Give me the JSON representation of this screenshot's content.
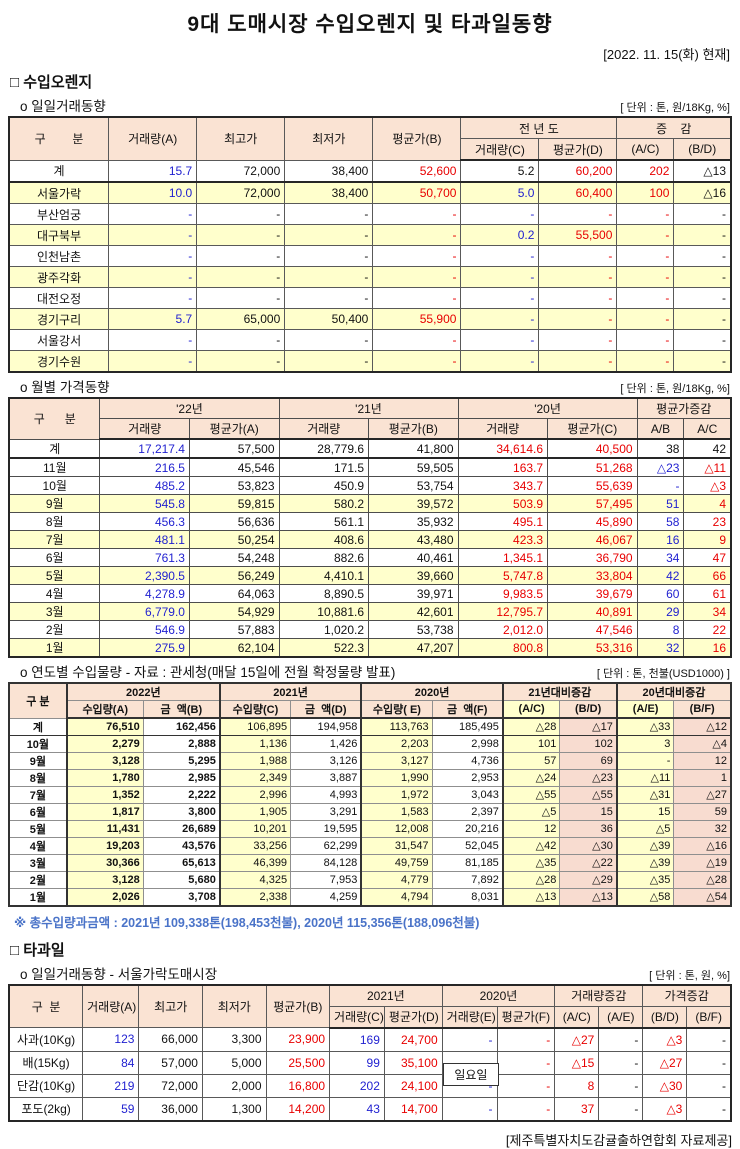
{
  "page": {
    "title": "9대 도매시장 수입오렌지 및 타과일동향",
    "date": "[2022. 11. 15(화) 현재]",
    "footer": "[제주특별자치도감귤출하연합회 자료제공]"
  },
  "colors": {
    "value_blue": "#1F1FD0",
    "value_red": "#E80000",
    "header_peach": "#FAE3D3",
    "row_yellow": "#FFFFCC",
    "col_pink": "#F8DCD0",
    "note_blue": "#4A73C8"
  },
  "section_orange": {
    "title": "□ 수입오렌지",
    "daily": {
      "title": "o  일일거래동향",
      "unit": "[ 단위 : 톤, 원/18Kg, %]",
      "headers": {
        "gubun": "구        분",
        "a": "거래량(A)",
        "high": "최고가",
        "low": "최저가",
        "b": "평균가(B)",
        "prev_year": "전 년 도",
        "c": "거래량(C)",
        "d": "평균가(D)",
        "diff": "증    감",
        "ac": "(A/C)",
        "bd": "(B/D)"
      },
      "rows": [
        {
          "cells": [
            "계",
            "15.7",
            "72,000",
            "38,400",
            "52,600",
            "5.2",
            "60,200",
            "202",
            "△13"
          ],
          "total": true,
          "ov": {
            "5": "c-black"
          }
        },
        {
          "cells": [
            "서울가락",
            "10.0",
            "72,000",
            "38,400",
            "50,700",
            "5.0",
            "60,400",
            "100",
            "△16"
          ],
          "hl": true
        },
        {
          "cells": [
            "부산엄궁",
            "-",
            "-",
            "-",
            "-",
            "-",
            "-",
            "-",
            "-"
          ]
        },
        {
          "cells": [
            "대구북부",
            "-",
            "-",
            "-",
            "-",
            "0.2",
            "55,500",
            "-",
            "-"
          ],
          "hl": true
        },
        {
          "cells": [
            "인천남촌",
            "-",
            "-",
            "-",
            "-",
            "-",
            "-",
            "-",
            "-"
          ]
        },
        {
          "cells": [
            "광주각화",
            "-",
            "-",
            "-",
            "-",
            "-",
            "-",
            "-",
            "-"
          ],
          "hl": true
        },
        {
          "cells": [
            "대전오정",
            "-",
            "-",
            "-",
            "-",
            "-",
            "-",
            "-",
            "-"
          ]
        },
        {
          "cells": [
            "경기구리",
            "5.7",
            "65,000",
            "50,400",
            "55,900",
            "-",
            "-",
            "-",
            "-"
          ],
          "hl": true
        },
        {
          "cells": [
            "서울강서",
            "-",
            "-",
            "-",
            "-",
            "-",
            "-",
            "-",
            "-"
          ]
        },
        {
          "cells": [
            "경기수원",
            "-",
            "-",
            "-",
            "-",
            "-",
            "-",
            "-",
            "-"
          ],
          "hl": true
        }
      ]
    },
    "monthly": {
      "title": "o  월별 가격동향",
      "unit": "[ 단위 : 톤, 원/18Kg, %]",
      "headers": {
        "gubun": "구      분",
        "y22": "'22년",
        "y21": "'21년",
        "y20": "'20년",
        "diff": "평균가증감",
        "vol": "거래량",
        "pa": "평균가(A)",
        "pb": "평균가(B)",
        "pc": "평균가(C)",
        "ab": "A/B",
        "ac": "A/C"
      },
      "rows": [
        {
          "cells": [
            "계",
            "17,217.4",
            "57,500",
            "28,779.6",
            "41,800",
            "34,614.6",
            "40,500",
            "38",
            "42"
          ],
          "total": true,
          "ov": {
            "7": "c-black",
            "8": "c-black"
          }
        },
        {
          "cells": [
            "11월",
            "216.5",
            "45,546",
            "171.5",
            "59,505",
            "163.7",
            "51,268",
            "△23",
            "△11"
          ]
        },
        {
          "cells": [
            "10월",
            "485.2",
            "53,823",
            "450.9",
            "53,754",
            "343.7",
            "55,639",
            "-",
            "△3"
          ]
        },
        {
          "cells": [
            "9월",
            "545.8",
            "59,815",
            "580.2",
            "39,572",
            "503.9",
            "57,495",
            "51",
            "4"
          ],
          "hl": true
        },
        {
          "cells": [
            "8월",
            "456.3",
            "56,636",
            "561.1",
            "35,932",
            "495.1",
            "45,890",
            "58",
            "23"
          ]
        },
        {
          "cells": [
            "7월",
            "481.1",
            "50,254",
            "408.6",
            "43,480",
            "423.3",
            "46,067",
            "16",
            "9"
          ],
          "hl": true
        },
        {
          "cells": [
            "6월",
            "761.3",
            "54,248",
            "882.6",
            "40,461",
            "1,345.1",
            "36,790",
            "34",
            "47"
          ]
        },
        {
          "cells": [
            "5월",
            "2,390.5",
            "56,249",
            "4,410.1",
            "39,660",
            "5,747.8",
            "33,804",
            "42",
            "66"
          ],
          "hl": true
        },
        {
          "cells": [
            "4월",
            "4,278.9",
            "64,063",
            "8,890.5",
            "39,971",
            "9,983.5",
            "39,679",
            "60",
            "61"
          ]
        },
        {
          "cells": [
            "3월",
            "6,779.0",
            "54,929",
            "10,881.6",
            "42,601",
            "12,795.7",
            "40,891",
            "29",
            "34"
          ],
          "hl": true
        },
        {
          "cells": [
            "2월",
            "546.9",
            "57,883",
            "1,020.2",
            "53,738",
            "2,012.0",
            "47,546",
            "8",
            "22"
          ]
        },
        {
          "cells": [
            "1월",
            "275.9",
            "62,104",
            "522.3",
            "47,207",
            "800.8",
            "53,316",
            "32",
            "16"
          ],
          "hl": true
        }
      ]
    },
    "yearly": {
      "title": "o  연도별 수입물량 - 자료 : 관세청(매달 15일에 전월 확정물량 발표)",
      "unit": "[ 단위 : 톤, 천불(USD1000) ]",
      "note": "※ 총수입량과금액 : 2021년 109,338톤(198,453천불),  2020년 115,356톤(188,096천불)",
      "headers": {
        "gubun": "구 분",
        "y2022": "2022년",
        "y2021": "2021년",
        "y2020": "2020년",
        "d21": "21년대비증감",
        "d20": "20년대비증감",
        "ia": "수입량(A)",
        "mb": "금  액(B)",
        "ic": "수입량(C)",
        "md": "금  액(D)",
        "ie": "수입량( E)",
        "mf": "금  액(F)",
        "ac": "(A/C)",
        "bd": "(B/D)",
        "ae": "(A/E)",
        "bf": "(B/F)"
      },
      "rows": [
        {
          "cells": [
            "계",
            "76,510",
            "162,456",
            "106,895",
            "194,958",
            "113,763",
            "185,495",
            "△28",
            "△17",
            "△33",
            "△12"
          ],
          "total": true
        },
        {
          "cells": [
            "10월",
            "2,279",
            "2,888",
            "1,136",
            "1,426",
            "2,203",
            "2,998",
            "101",
            "102",
            "3",
            "△4"
          ]
        },
        {
          "cells": [
            "9월",
            "3,128",
            "5,295",
            "1,988",
            "3,126",
            "3,127",
            "4,736",
            "57",
            "69",
            "-",
            "12"
          ]
        },
        {
          "cells": [
            "8월",
            "1,780",
            "2,985",
            "2,349",
            "3,887",
            "1,990",
            "2,953",
            "△24",
            "△23",
            "△11",
            "1"
          ]
        },
        {
          "cells": [
            "7월",
            "1,352",
            "2,222",
            "2,996",
            "4,993",
            "1,972",
            "3,043",
            "△55",
            "△55",
            "△31",
            "△27"
          ]
        },
        {
          "cells": [
            "6월",
            "1,817",
            "3,800",
            "1,905",
            "3,291",
            "1,583",
            "2,397",
            "△5",
            "15",
            "15",
            "59"
          ]
        },
        {
          "cells": [
            "5월",
            "11,431",
            "26,689",
            "10,201",
            "19,595",
            "12,008",
            "20,216",
            "12",
            "36",
            "△5",
            "32"
          ]
        },
        {
          "cells": [
            "4월",
            "19,203",
            "43,576",
            "33,256",
            "62,299",
            "31,547",
            "52,045",
            "△42",
            "△30",
            "△39",
            "△16"
          ]
        },
        {
          "cells": [
            "3월",
            "30,366",
            "65,613",
            "46,399",
            "84,128",
            "49,759",
            "81,185",
            "△35",
            "△22",
            "△39",
            "△19"
          ]
        },
        {
          "cells": [
            "2월",
            "3,128",
            "5,680",
            "4,325",
            "7,953",
            "4,779",
            "7,892",
            "△28",
            "△29",
            "△35",
            "△28"
          ]
        },
        {
          "cells": [
            "1월",
            "2,026",
            "3,708",
            "2,338",
            "4,259",
            "4,794",
            "8,031",
            "△13",
            "△13",
            "△58",
            "△54"
          ]
        }
      ]
    }
  },
  "section_fruit": {
    "title": "□ 타과일",
    "daily": {
      "title": "o  일일거래동향 - 서울가락도매시장",
      "unit": "[ 단위 : 톤, 원, %]",
      "overlay_label": "일요일",
      "headers": {
        "gubun": "구  분",
        "a": "거래량(A)",
        "high": "최고가",
        "low": "최저가",
        "b": "평균가(B)",
        "y2021": "2021년",
        "c": "거래량(C)",
        "d": "평균가(D)",
        "y2020": "2020년",
        "e": "거래량(E)",
        "f": "평균가(F)",
        "voldiff": "거래량증감",
        "pricediff": "가격증감",
        "ac": "(A/C)",
        "ae": "(A/E)",
        "bd": "(B/D)",
        "bf": "(B/F)"
      },
      "rows": [
        {
          "cells": [
            "사과(10Kg)",
            "123",
            "66,000",
            "3,300",
            "23,900",
            "169",
            "24,700",
            "-",
            "-",
            "△27",
            "-",
            "△3",
            "-"
          ]
        },
        {
          "cells": [
            "배(15Kg)",
            "84",
            "57,000",
            "5,000",
            "25,500",
            "99",
            "35,100",
            "-",
            "-",
            "△15",
            "-",
            "△27",
            "-"
          ]
        },
        {
          "cells": [
            "단감(10Kg)",
            "219",
            "72,000",
            "2,000",
            "16,800",
            "202",
            "24,100",
            "-",
            "-",
            "8",
            "-",
            "△30",
            "-"
          ]
        },
        {
          "cells": [
            "포도(2kg)",
            "59",
            "36,000",
            "1,300",
            "14,200",
            "43",
            "14,700",
            "-",
            "-",
            "37",
            "-",
            "△3",
            "-"
          ]
        }
      ]
    }
  }
}
